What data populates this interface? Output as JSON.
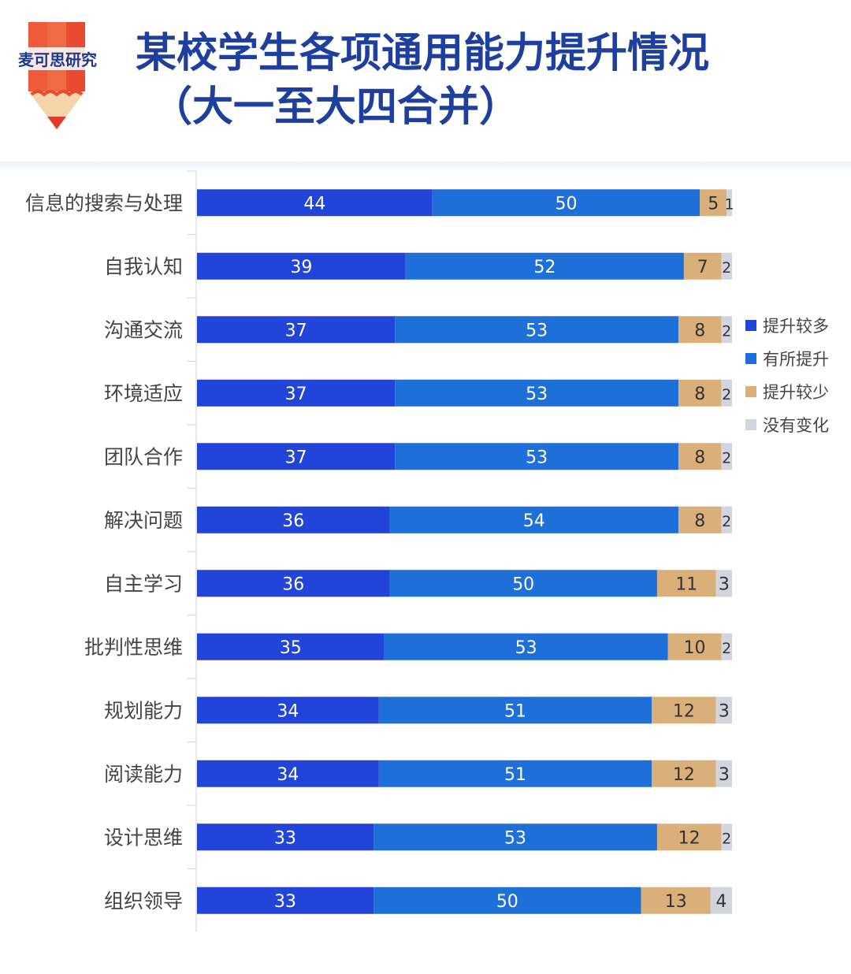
{
  "header": {
    "logo_text": "麦可思研究",
    "title": "某校学生各项通用能力提升情况",
    "subtitle": "（大一至大四合并）"
  },
  "chart_data": {
    "type": "bar",
    "orientation": "horizontal",
    "stacked": true,
    "title": "某校学生各项通用能力提升情况（大一至大四合并）",
    "categories": [
      "信息的搜索与处理",
      "自我认知",
      "沟通交流",
      "环境适应",
      "团队合作",
      "解决问题",
      "自主学习",
      "批判性思维",
      "规划能力",
      "阅读能力",
      "设计思维",
      "组织领导"
    ],
    "series": [
      {
        "name": "提升较多",
        "color": "#2244d8",
        "values": [
          44,
          39,
          37,
          37,
          37,
          36,
          36,
          35,
          34,
          34,
          33,
          33
        ]
      },
      {
        "name": "有所提升",
        "color": "#1f6fd8",
        "values": [
          50,
          52,
          53,
          53,
          53,
          54,
          50,
          53,
          51,
          51,
          53,
          50
        ]
      },
      {
        "name": "提升较少",
        "color": "#d9b07a",
        "values": [
          5,
          7,
          8,
          8,
          8,
          8,
          11,
          10,
          12,
          12,
          12,
          13
        ]
      },
      {
        "name": "没有变化",
        "color": "#d3d5de",
        "values": [
          1,
          2,
          2,
          2,
          2,
          2,
          3,
          2,
          3,
          3,
          2,
          4
        ]
      }
    ],
    "xlim": [
      0,
      100
    ],
    "grid": false,
    "legend_position": "right"
  }
}
